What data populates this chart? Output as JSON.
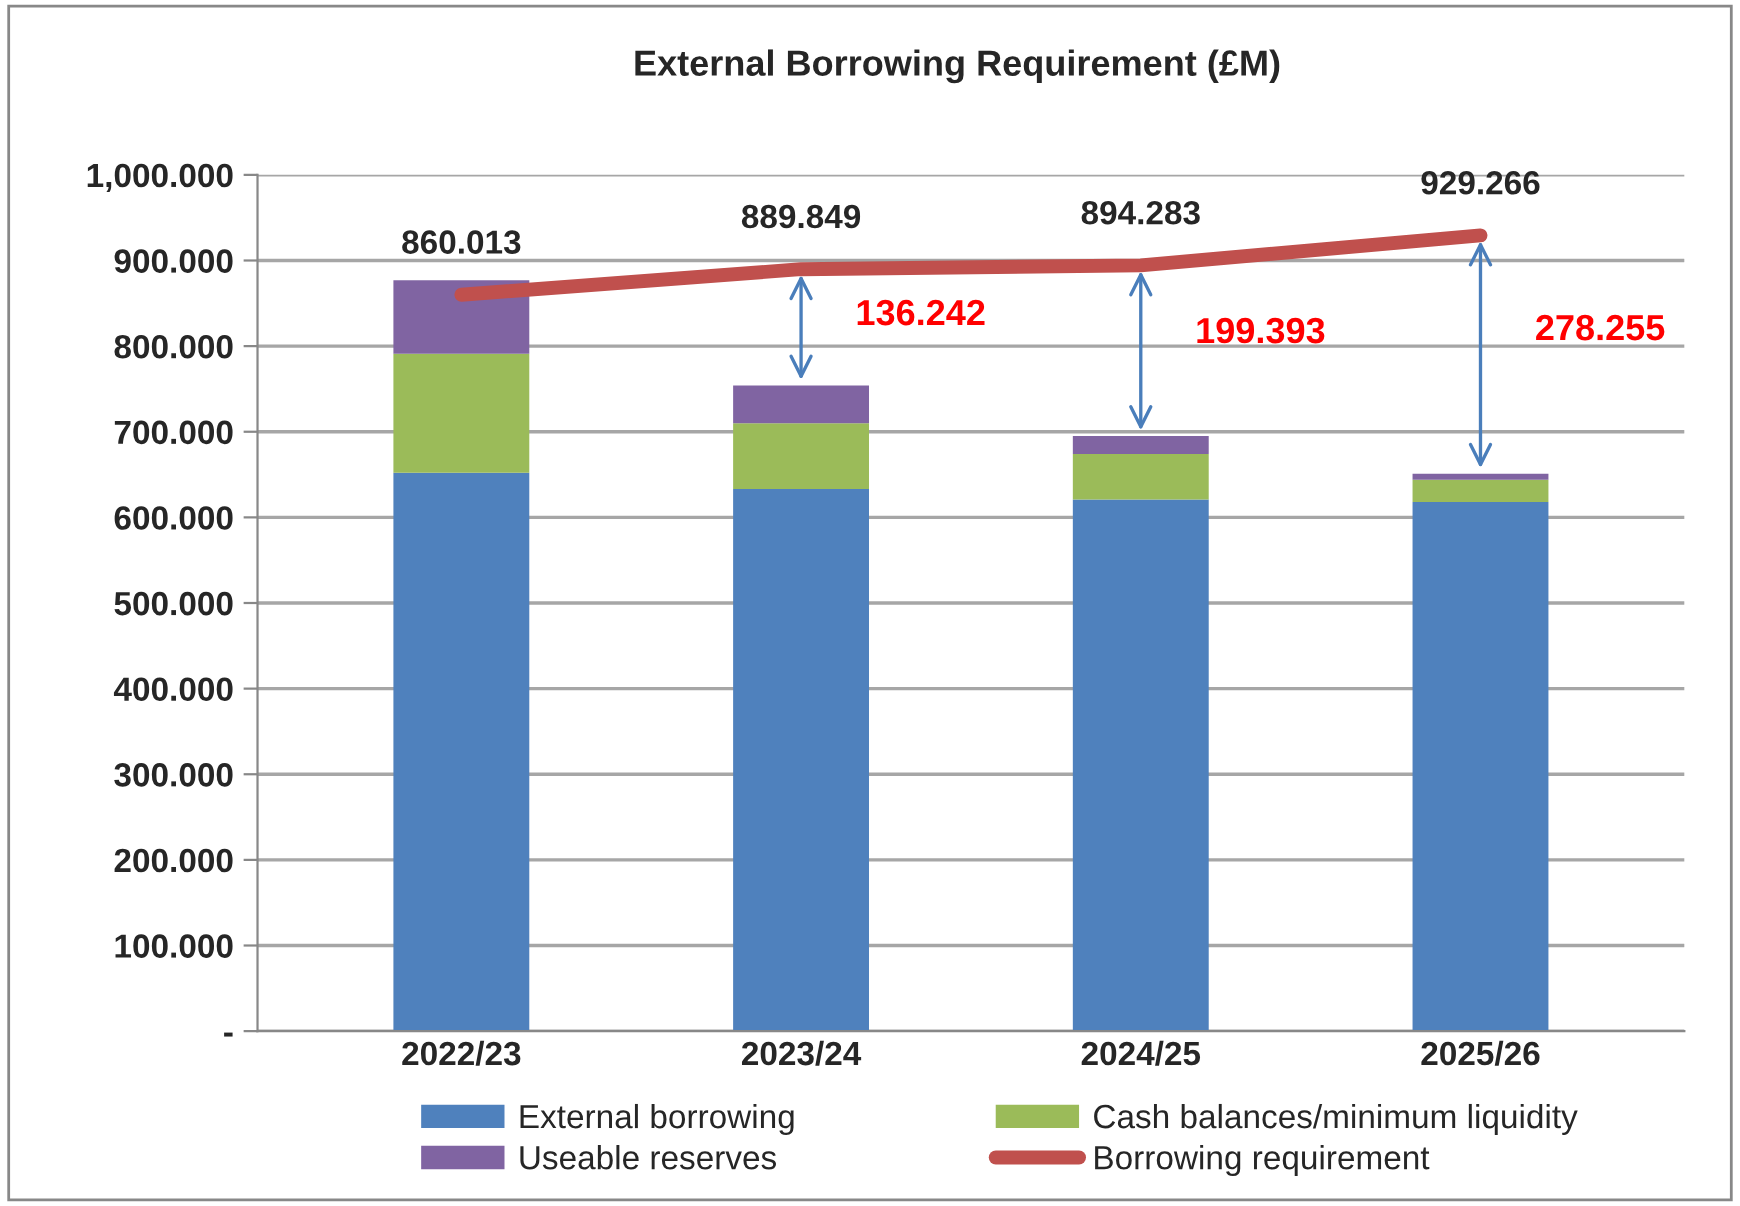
{
  "chart_data": {
    "type": "bar",
    "title": "External Borrowing Requirement (£M)",
    "categories": [
      "2022/23",
      "2023/24",
      "2024/25",
      "2025/26"
    ],
    "stacked": true,
    "series": [
      {
        "name": "External borrowing",
        "color": "#4f81bd",
        "values": [
          652,
          633,
          621,
          618
        ]
      },
      {
        "name": "Cash balances/minimum liquidity",
        "color": "#9bbb59",
        "values": [
          139,
          77,
          53,
          26
        ]
      },
      {
        "name": "Useable reserves",
        "color": "#8064a2",
        "values": [
          86,
          44,
          21,
          7
        ]
      },
      {
        "name": "Borrowing requirement",
        "type": "line",
        "color": "#c0504d",
        "values": [
          860.013,
          889.849,
          894.283,
          929.266
        ],
        "value_labels": [
          "860.013",
          "889.849",
          "894.283",
          "929.266"
        ]
      }
    ],
    "ylim": [
      0,
      1000
    ],
    "yticks": [
      {
        "value": 0,
        "label": "-"
      },
      {
        "value": 100,
        "label": "100.000"
      },
      {
        "value": 200,
        "label": "200.000"
      },
      {
        "value": 300,
        "label": "300.000"
      },
      {
        "value": 400,
        "label": "400.000"
      },
      {
        "value": 500,
        "label": "500.000"
      },
      {
        "value": 600,
        "label": "600.000"
      },
      {
        "value": 700,
        "label": "700.000"
      },
      {
        "value": 800,
        "label": "800.000"
      },
      {
        "value": 900,
        "label": "900.000"
      },
      {
        "value": 1000,
        "label": "1,000.000"
      }
    ],
    "grid": "y",
    "legend": "bottom",
    "annotations": [
      "136.242",
      "199.393",
      "278.255"
    ]
  }
}
